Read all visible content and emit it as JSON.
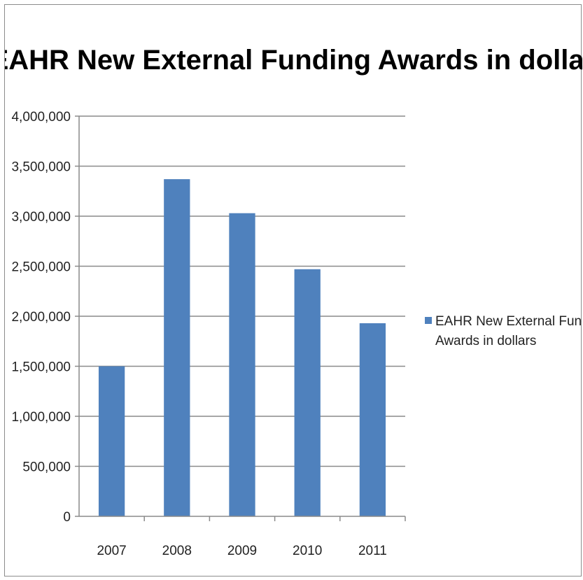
{
  "chart_data": {
    "type": "bar",
    "title": "EAHR New External Funding Awards in dollars",
    "xlabel": "",
    "ylabel": "",
    "categories": [
      "2007",
      "2008",
      "2009",
      "2010",
      "2011"
    ],
    "series": [
      {
        "name": "EAHR New External Funding Awards in dollars",
        "values": [
          1500000,
          3370000,
          3030000,
          2470000,
          1930000
        ],
        "color": "#4f81bd"
      }
    ],
    "ylim": [
      0,
      4000000
    ],
    "yticks": [
      "0",
      "500,000",
      "1,000,000",
      "1,500,000",
      "2,000,000",
      "2,500,000",
      "3,000,000",
      "3,500,000",
      "4,000,000"
    ],
    "grid": true,
    "legend_position": "right",
    "legend_lines": [
      "EAHR New External Funding",
      "Awards in dollars"
    ]
  }
}
